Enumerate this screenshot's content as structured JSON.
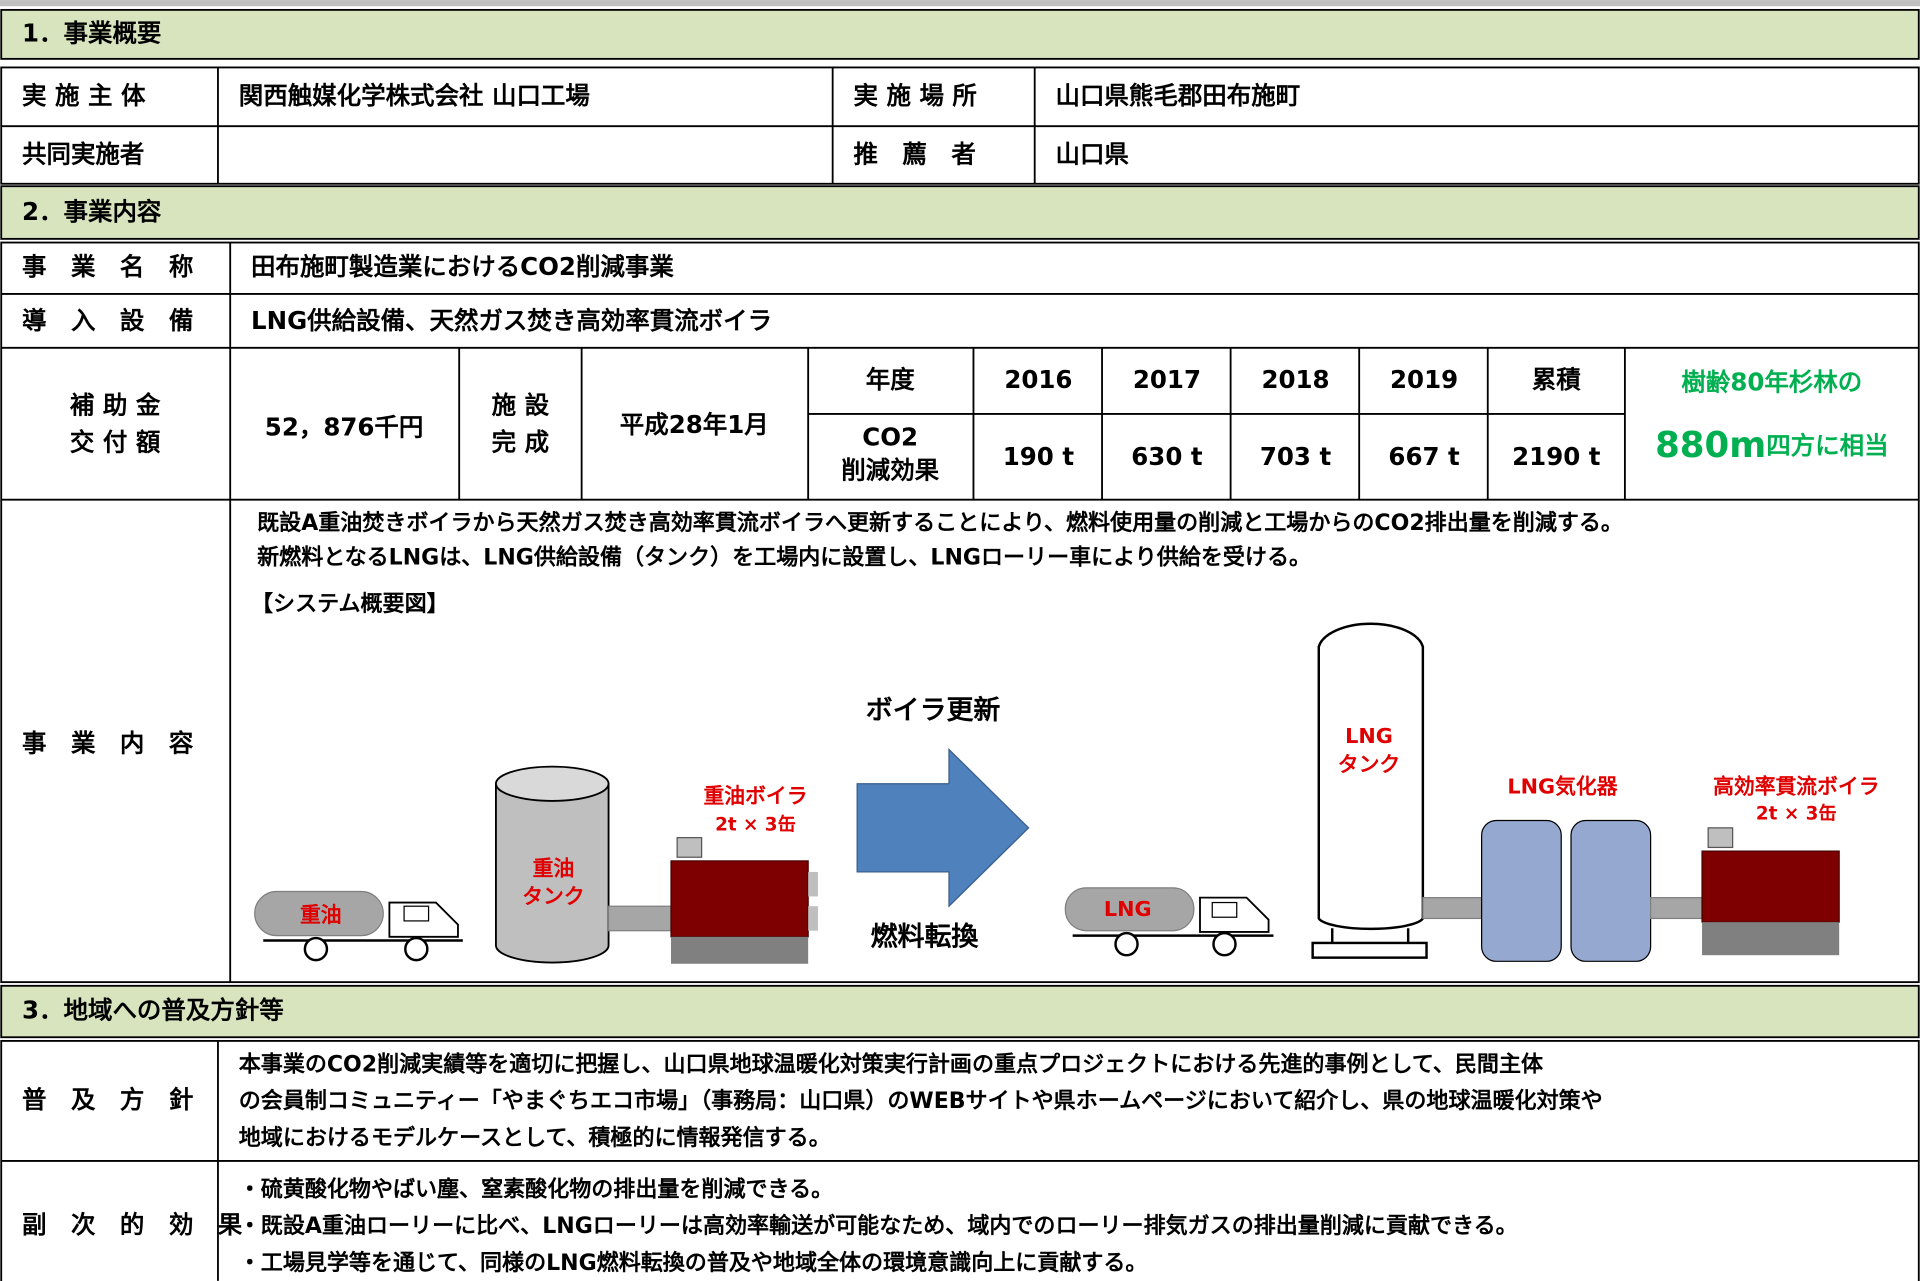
{
  "section1": {
    "title": "1．事業概要",
    "implementer_label": "実 施 主 体",
    "implementer": "関西触媒化学株式会社 山口工場",
    "location_label": "実 施 場 所",
    "location": "山口県熊毛郡田布施町",
    "partner_label": "共同実施者",
    "recommender_label": "推　薦　者",
    "recommender": "山口県"
  },
  "section2": {
    "title": "2．事業内容",
    "name_label": "事　業　名　称",
    "name": "田布施町製造業におけるCO2削減事業",
    "equipment_label": "導　入　設　備",
    "equipment": "LNG供給設備、天然ガス焚き高効率貫流ボイラ",
    "subsidy_label": [
      "補 助 金",
      "交 付 額"
    ],
    "subsidy": "52，876千円",
    "completion_label": [
      "施 設",
      "完 成"
    ],
    "completion": "平成28年1月",
    "effect_table": {
      "header": [
        "年度",
        "2016",
        "2017",
        "2018",
        "2019",
        "累積"
      ],
      "row_label": [
        "CO2",
        "削減効果"
      ],
      "values": [
        "190 t",
        "630 t",
        "703 t",
        "667 t",
        "2190 t"
      ]
    },
    "equivalent": {
      "line1": "樹齢80年杉林の",
      "big": "880m",
      "rest": "四方に相当"
    },
    "content_label": "事　業　内　容",
    "description": [
      "既設A重油焚きボイラから天然ガス焚き高効率貫流ボイラへ更新することにより、燃料使用量の削減と工場からのCO2排出量を削減する。",
      "新燃料となるLNGは、LNG供給設備（タンク）を工場内に設置し、LNGローリー車により供給を受ける。"
    ],
    "diagram": {
      "title": "【システム概要図】",
      "arrow_top": "ボイラ更新",
      "arrow_bottom": "燃料転換",
      "oil_truck": "重油",
      "oil_tank": [
        "重油",
        "タンク"
      ],
      "oil_boiler": "重油ボイラ",
      "oil_boiler_spec": "2t × 3缶",
      "lng_truck": "LNG",
      "lng_tank": [
        "LNG",
        "タンク"
      ],
      "vaporizer": "LNG気化器",
      "new_boiler": "高効率貫流ボイラ",
      "new_boiler_spec": "2t × 3缶"
    }
  },
  "section3": {
    "title": "3．地域への普及方針等",
    "policy_label": "普　及　方　針",
    "policy": [
      "本事業のCO2削減実績等を適切に把握し、山口県地球温暖化対策実行計画の重点プロジェクトにおける先進的事例として、民間主体",
      "の会員制コミュニティー「やまぐちエコ市場」（事務局：山口県）のWEBサイトや県ホームページにおいて紹介し、県の地球温暖化対策や",
      "地域におけるモデルケースとして、積極的に情報発信する。"
    ],
    "effects_label": "副　次　的　効　果",
    "effects": [
      "・硫黄酸化物やばい塵、窒素酸化物の排出量を削減できる。",
      "・既設A重油ローリーに比べ、LNGローリーは高効率輸送が可能なため、域内でのローリー排気ガスの排出量削減に貢献できる。",
      "・工場見学等を通じて、同様のLNG燃料転換の普及や地域全体の環境意識向上に貢献する。"
    ]
  }
}
